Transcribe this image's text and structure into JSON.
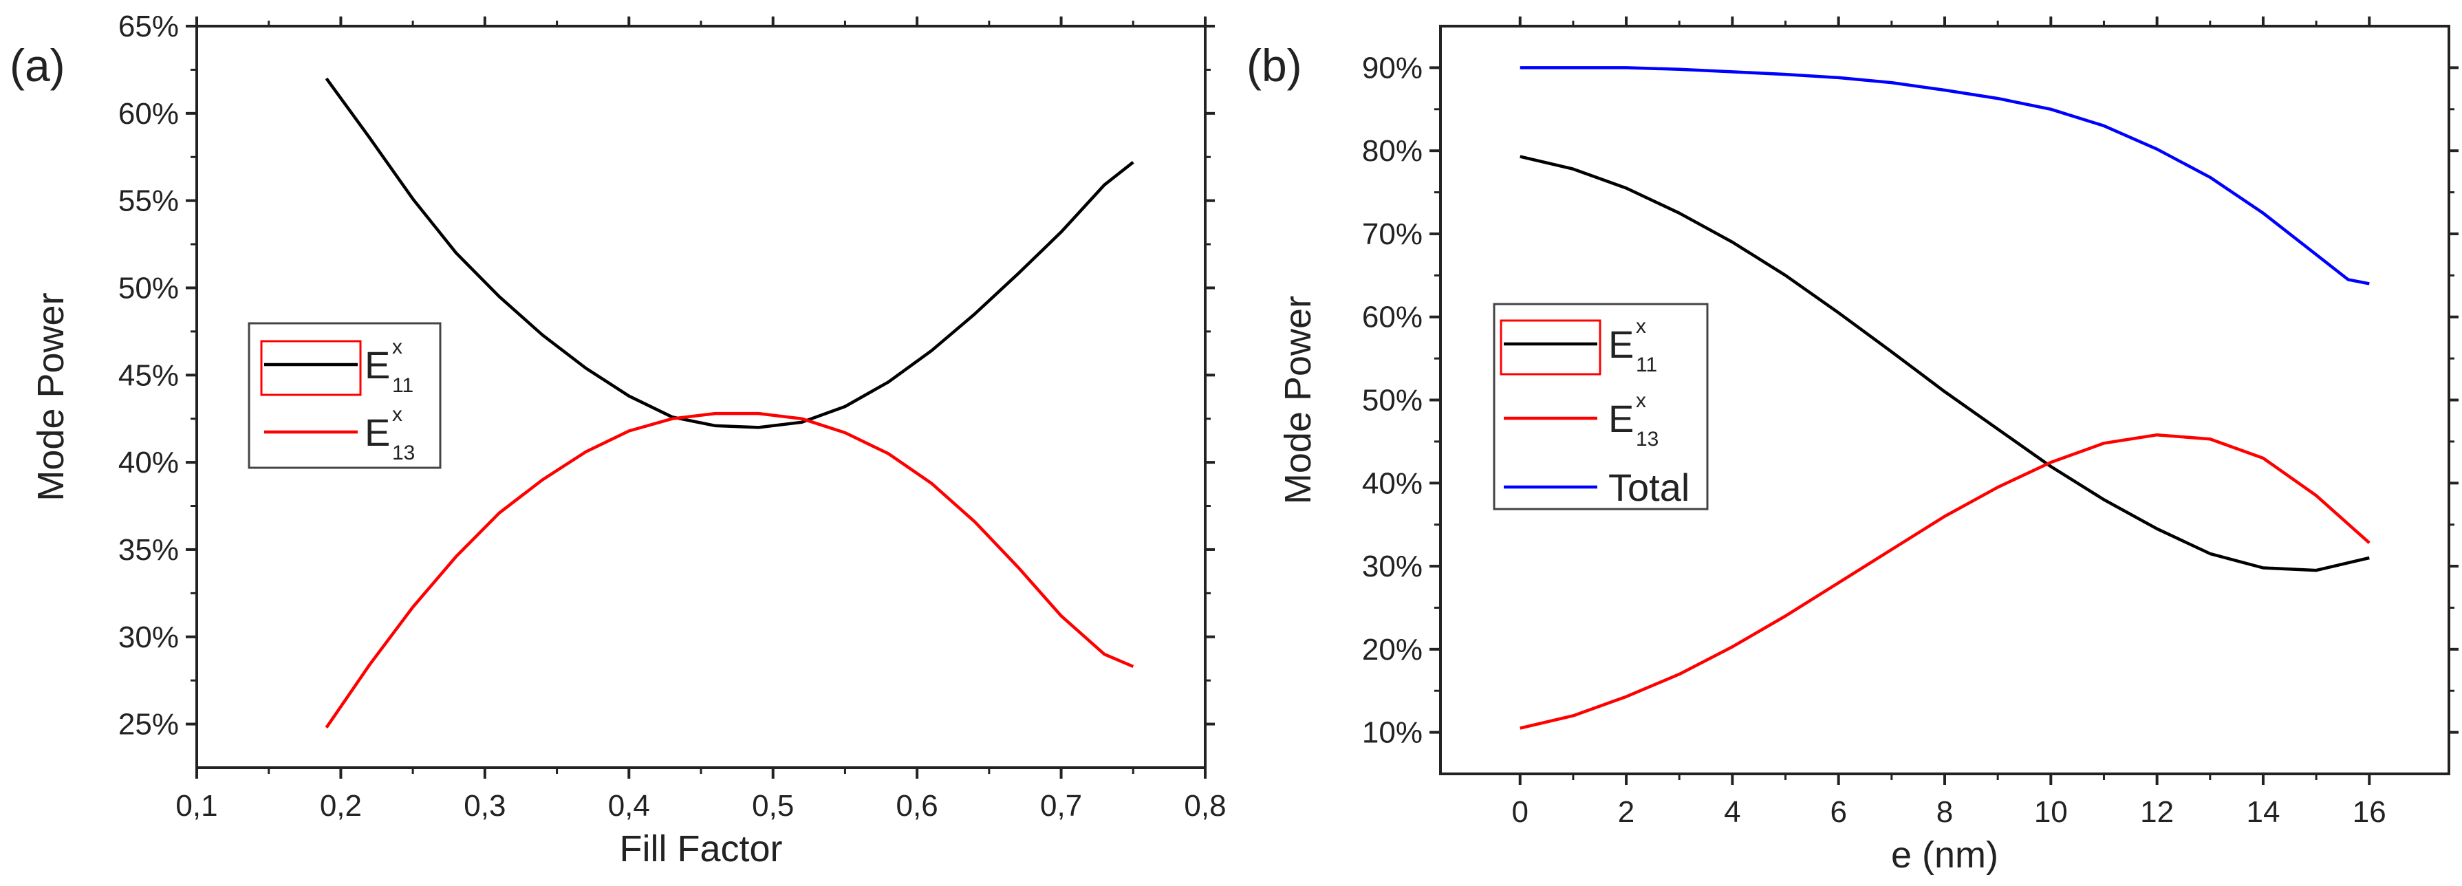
{
  "chart_data": [
    {
      "panel_label": "(a)",
      "type": "line",
      "xlabel": "Fill Factor",
      "ylabel": "Mode Power",
      "xlim": [
        0.1,
        0.8
      ],
      "ylim": [
        22.5,
        65
      ],
      "x_ticks": [
        0.1,
        0.2,
        0.3,
        0.4,
        0.5,
        0.6,
        0.7,
        0.8
      ],
      "x_tick_labels": [
        "0,1",
        "0,2",
        "0,3",
        "0,4",
        "0,5",
        "0,6",
        "0,7",
        "0,8"
      ],
      "y_ticks": [
        25,
        30,
        35,
        40,
        45,
        50,
        55,
        60,
        65
      ],
      "y_tick_labels": [
        "25%",
        "30%",
        "35%",
        "40%",
        "45%",
        "50%",
        "55%",
        "60%",
        "65%"
      ],
      "grid": false,
      "legend_position": "center-left",
      "series": [
        {
          "name": "E11x",
          "label": "E",
          "superscript": "x",
          "subscript": "11",
          "color": "#000000",
          "x": [
            0.19,
            0.22,
            0.25,
            0.28,
            0.31,
            0.34,
            0.37,
            0.4,
            0.43,
            0.46,
            0.49,
            0.52,
            0.55,
            0.58,
            0.61,
            0.64,
            0.67,
            0.7,
            0.73,
            0.75
          ],
          "y": [
            62.0,
            58.6,
            55.1,
            52.0,
            49.5,
            47.3,
            45.4,
            43.8,
            42.6,
            42.1,
            42.0,
            42.3,
            43.2,
            44.6,
            46.4,
            48.5,
            50.8,
            53.2,
            55.9,
            57.2
          ]
        },
        {
          "name": "E13x",
          "label": "E",
          "superscript": "x",
          "subscript": "13",
          "color": "#ff0000",
          "x": [
            0.19,
            0.22,
            0.25,
            0.28,
            0.31,
            0.34,
            0.37,
            0.4,
            0.43,
            0.46,
            0.49,
            0.52,
            0.55,
            0.58,
            0.61,
            0.64,
            0.67,
            0.7,
            0.73,
            0.75
          ],
          "y": [
            24.8,
            28.4,
            31.7,
            34.6,
            37.1,
            39.0,
            40.6,
            41.8,
            42.5,
            42.8,
            42.8,
            42.5,
            41.7,
            40.5,
            38.8,
            36.6,
            34.0,
            31.2,
            29.0,
            28.3
          ]
        }
      ]
    },
    {
      "panel_label": "(b)",
      "type": "line",
      "xlabel": "e (nm)",
      "ylabel": "Mode Power",
      "xlim": [
        -1.5,
        17.5
      ],
      "ylim": [
        5,
        95
      ],
      "x_ticks": [
        0,
        2,
        4,
        6,
        8,
        10,
        12,
        14,
        16
      ],
      "x_tick_labels": [
        "0",
        "2",
        "4",
        "6",
        "8",
        "10",
        "12",
        "14",
        "16"
      ],
      "y_ticks": [
        10,
        20,
        30,
        40,
        50,
        60,
        70,
        80,
        90
      ],
      "y_tick_labels": [
        "10%",
        "20%",
        "30%",
        "40%",
        "50%",
        "60%",
        "70%",
        "80%",
        "90%"
      ],
      "grid": false,
      "legend_position": "center-left",
      "series": [
        {
          "name": "E11x",
          "label": "E",
          "superscript": "x",
          "subscript": "11",
          "color": "#000000",
          "x": [
            0,
            1,
            2,
            3,
            4,
            5,
            6,
            7,
            8,
            9,
            10,
            11,
            12,
            13,
            14,
            15,
            16
          ],
          "y": [
            79.3,
            77.8,
            75.5,
            72.5,
            69.0,
            65.0,
            60.5,
            55.8,
            51.0,
            46.5,
            42.0,
            38.0,
            34.5,
            31.5,
            29.8,
            29.5,
            31.0
          ]
        },
        {
          "name": "E13x",
          "label": "E",
          "superscript": "x",
          "subscript": "13",
          "color": "#ff0000",
          "x": [
            0,
            1,
            2,
            3,
            4,
            5,
            6,
            7,
            8,
            9,
            10,
            11,
            12,
            13,
            14,
            15,
            16
          ],
          "y": [
            10.5,
            12.0,
            14.3,
            17.0,
            20.3,
            24.0,
            28.0,
            32.0,
            36.0,
            39.5,
            42.5,
            44.8,
            45.8,
            45.3,
            43.0,
            38.5,
            32.8
          ]
        },
        {
          "name": "Total",
          "label": "Total",
          "color": "#0000ff",
          "x": [
            0,
            1,
            2,
            3,
            4,
            5,
            6,
            7,
            8,
            9,
            10,
            11,
            12,
            13,
            14,
            15,
            15.6,
            16
          ],
          "y": [
            90.0,
            90.0,
            90.0,
            89.8,
            89.5,
            89.2,
            88.8,
            88.2,
            87.3,
            86.3,
            85.0,
            83.0,
            80.2,
            76.8,
            72.5,
            67.5,
            64.5,
            64.0
          ]
        }
      ]
    }
  ]
}
